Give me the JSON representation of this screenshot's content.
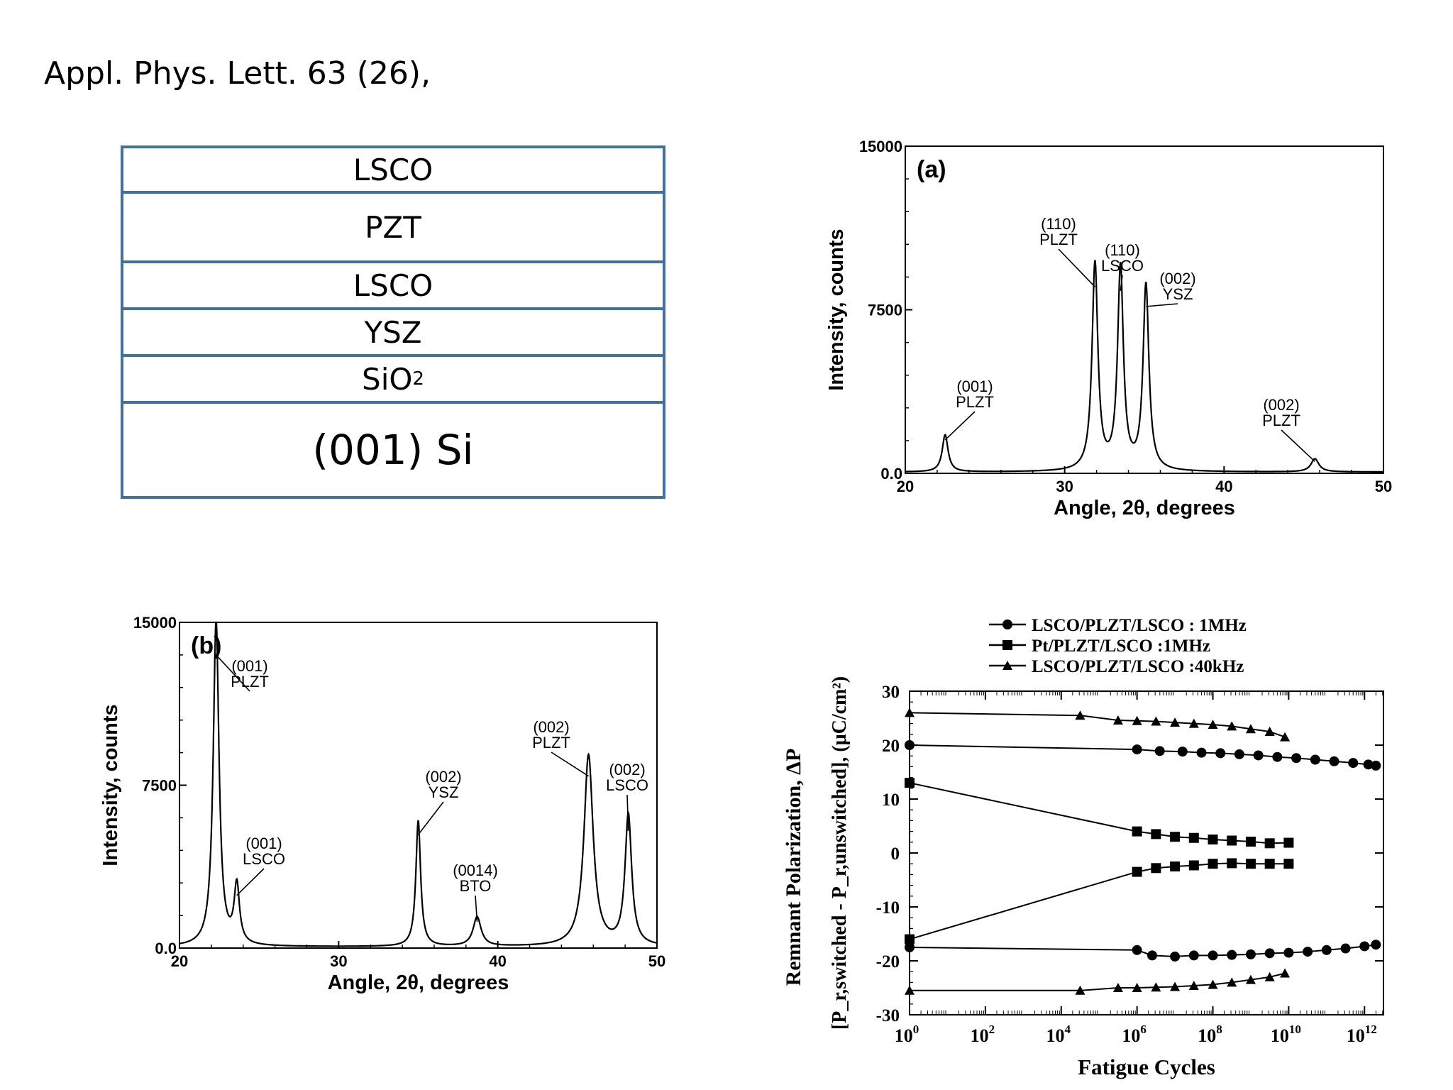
{
  "citation": "Appl. Phys. Lett. 63 (26),",
  "stack": {
    "layers": [
      {
        "label": "LSCO",
        "sub": ""
      },
      {
        "label": "PZT",
        "sub": ""
      },
      {
        "label": "LSCO",
        "sub": ""
      },
      {
        "label": "YSZ",
        "sub": ""
      },
      {
        "label": "SiO",
        "sub": "2"
      },
      {
        "label": "(001) Si",
        "sub": ""
      }
    ]
  },
  "chart_data": [
    {
      "type": "line",
      "panel": "(a)",
      "xlabel": "Angle, 2θ, degrees",
      "ylabel": "Intensity, counts",
      "xlim": [
        20,
        50
      ],
      "ylim": [
        0,
        15000
      ],
      "xticks": [
        "20",
        "30",
        "40",
        "50"
      ],
      "yticks": [
        "0.0",
        "7500",
        "15000"
      ],
      "peaks": [
        {
          "x": 22.5,
          "height": 1700,
          "width": 0.22,
          "label": [
            "(001)",
            "PLZT"
          ]
        },
        {
          "x": 31.9,
          "height": 9500,
          "width": 0.22,
          "label": [
            "(110)",
            "PLZT"
          ]
        },
        {
          "x": 33.5,
          "height": 9300,
          "width": 0.22,
          "label": [
            "(110)",
            "LSCO"
          ]
        },
        {
          "x": 35.1,
          "height": 8500,
          "width": 0.22,
          "label": [
            "(002)",
            "YSZ"
          ]
        },
        {
          "x": 45.7,
          "height": 600,
          "width": 0.3,
          "label": [
            "(002)",
            "PLZT"
          ]
        }
      ]
    },
    {
      "type": "line",
      "panel": "(b)",
      "xlabel": "Angle, 2θ, degrees",
      "ylabel": "Intensity, counts",
      "xlim": [
        20,
        50
      ],
      "ylim": [
        0,
        15000
      ],
      "xticks": [
        "20",
        "30",
        "40",
        "50"
      ],
      "yticks": [
        "0.0",
        "7500",
        "15000"
      ],
      "peaks": [
        {
          "x": 22.3,
          "height": 15000,
          "width": 0.22,
          "label": [
            "(001)",
            "PLZT"
          ]
        },
        {
          "x": 23.6,
          "height": 2700,
          "width": 0.2,
          "label": [
            "(001)",
            "LSCO"
          ]
        },
        {
          "x": 35.0,
          "height": 5800,
          "width": 0.18,
          "label": [
            "(002)",
            "YSZ"
          ]
        },
        {
          "x": 38.7,
          "height": 1350,
          "width": 0.3,
          "label": [
            "(0014)",
            "BTO"
          ]
        },
        {
          "x": 45.7,
          "height": 8800,
          "width": 0.35,
          "label": [
            "(002)",
            "PLZT"
          ]
        },
        {
          "x": 48.2,
          "height": 6000,
          "width": 0.25,
          "label": [
            "(002)",
            "LSCO"
          ]
        }
      ]
    },
    {
      "type": "line",
      "xlabel": "Fatigue Cycles",
      "ylabel": "Remnant  Polarization, ΔP",
      "ylabel2": "[P_r,switched - P_r,unswitched], (μC/cm²)",
      "xscale": "log",
      "xlim": [
        0,
        12.5
      ],
      "ylim": [
        -30,
        30
      ],
      "xticks": [
        "0",
        "2",
        "4",
        "6",
        "8",
        "10",
        "12"
      ],
      "yticks": [
        "30",
        "20",
        "10",
        "0",
        "-10",
        "-20",
        "-30"
      ],
      "legend": "top",
      "series": [
        {
          "name": "LSCO/PLZT/LSCO : 1MHz",
          "marker": "circle",
          "upper": [
            [
              0,
              20
            ],
            [
              6,
              19.2
            ],
            [
              6.6,
              18.9
            ],
            [
              7.2,
              18.8
            ],
            [
              7.7,
              18.6
            ],
            [
              8.2,
              18.5
            ],
            [
              8.7,
              18.3
            ],
            [
              9.2,
              18.1
            ],
            [
              9.7,
              17.8
            ],
            [
              10.2,
              17.6
            ],
            [
              10.7,
              17.3
            ],
            [
              11.2,
              17.0
            ],
            [
              11.7,
              16.7
            ],
            [
              12.1,
              16.4
            ],
            [
              12.3,
              16.2
            ]
          ],
          "lower": [
            [
              0,
              -17.5
            ],
            [
              6,
              -18
            ],
            [
              6.4,
              -19
            ],
            [
              7.0,
              -19.2
            ],
            [
              7.5,
              -19.0
            ],
            [
              8.0,
              -19.0
            ],
            [
              8.5,
              -18.9
            ],
            [
              9.0,
              -18.8
            ],
            [
              9.5,
              -18.6
            ],
            [
              10.0,
              -18.5
            ],
            [
              10.5,
              -18.3
            ],
            [
              11.0,
              -18.0
            ],
            [
              11.5,
              -17.7
            ],
            [
              12.0,
              -17.3
            ],
            [
              12.3,
              -17.0
            ]
          ]
        },
        {
          "name": "Pt/PLZT/LSCO :1MHz",
          "marker": "square",
          "upper": [
            [
              0,
              13
            ],
            [
              6,
              4
            ],
            [
              6.5,
              3.5
            ],
            [
              7.0,
              3
            ],
            [
              7.5,
              2.8
            ],
            [
              8.0,
              2.5
            ],
            [
              8.5,
              2.3
            ],
            [
              9.0,
              2.1
            ],
            [
              9.5,
              1.8
            ],
            [
              10.0,
              1.9
            ]
          ],
          "lower": [
            [
              0,
              -16
            ],
            [
              6,
              -3.5
            ],
            [
              6.5,
              -2.8
            ],
            [
              7.0,
              -2.5
            ],
            [
              7.5,
              -2.3
            ],
            [
              8.0,
              -2
            ],
            [
              8.5,
              -1.9
            ],
            [
              9.0,
              -2
            ],
            [
              9.5,
              -2
            ],
            [
              10.0,
              -2
            ]
          ]
        },
        {
          "name": "LSCO/PLZT/LSCO :40kHz",
          "marker": "triangle",
          "upper": [
            [
              0,
              26
            ],
            [
              4.5,
              25.5
            ],
            [
              5.5,
              24.6
            ],
            [
              6.0,
              24.5
            ],
            [
              6.5,
              24.4
            ],
            [
              7.0,
              24.2
            ],
            [
              7.5,
              24.0
            ],
            [
              8.0,
              23.8
            ],
            [
              8.5,
              23.5
            ],
            [
              9.0,
              23.0
            ],
            [
              9.5,
              22.5
            ],
            [
              9.9,
              21.5
            ]
          ],
          "lower": [
            [
              0,
              -25.5
            ],
            [
              4.5,
              -25.5
            ],
            [
              5.5,
              -25
            ],
            [
              6.0,
              -25
            ],
            [
              6.5,
              -24.9
            ],
            [
              7.0,
              -24.8
            ],
            [
              7.5,
              -24.6
            ],
            [
              8.0,
              -24.4
            ],
            [
              8.5,
              -24.0
            ],
            [
              9.0,
              -23.5
            ],
            [
              9.5,
              -23.0
            ],
            [
              9.9,
              -22.3
            ]
          ]
        }
      ]
    }
  ]
}
